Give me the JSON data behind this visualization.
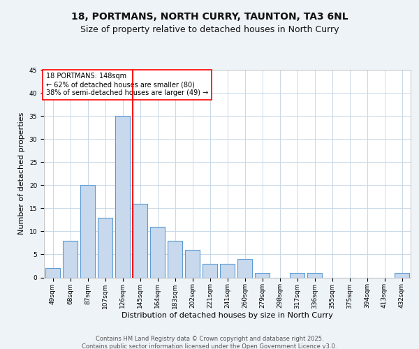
{
  "title_line1": "18, PORTMANS, NORTH CURRY, TAUNTON, TA3 6NL",
  "title_line2": "Size of property relative to detached houses in North Curry",
  "xlabel": "Distribution of detached houses by size in North Curry",
  "ylabel": "Number of detached properties",
  "categories": [
    "49sqm",
    "68sqm",
    "87sqm",
    "107sqm",
    "126sqm",
    "145sqm",
    "164sqm",
    "183sqm",
    "202sqm",
    "221sqm",
    "241sqm",
    "260sqm",
    "279sqm",
    "298sqm",
    "317sqm",
    "336sqm",
    "355sqm",
    "375sqm",
    "394sqm",
    "413sqm",
    "432sqm"
  ],
  "values": [
    2,
    8,
    20,
    13,
    35,
    16,
    11,
    8,
    6,
    3,
    3,
    4,
    1,
    0,
    1,
    1,
    0,
    0,
    0,
    0,
    1
  ],
  "bar_color": "#c8d9ed",
  "bar_edge_color": "#5b9bd5",
  "vline_color": "red",
  "vline_position": 4.575,
  "annotation_text": "18 PORTMANS: 148sqm\n← 62% of detached houses are smaller (80)\n38% of semi-detached houses are larger (49) →",
  "annotation_box_color": "white",
  "annotation_box_edge": "red",
  "ylim": [
    0,
    45
  ],
  "yticks": [
    0,
    5,
    10,
    15,
    20,
    25,
    30,
    35,
    40,
    45
  ],
  "bg_color": "#eef3f8",
  "plot_bg_color": "#ffffff",
  "footer_line1": "Contains HM Land Registry data © Crown copyright and database right 2025.",
  "footer_line2": "Contains public sector information licensed under the Open Government Licence v3.0.",
  "title_fontsize": 10,
  "subtitle_fontsize": 9,
  "axis_label_fontsize": 8,
  "tick_fontsize": 6.5,
  "annotation_fontsize": 7,
  "footer_fontsize": 6
}
